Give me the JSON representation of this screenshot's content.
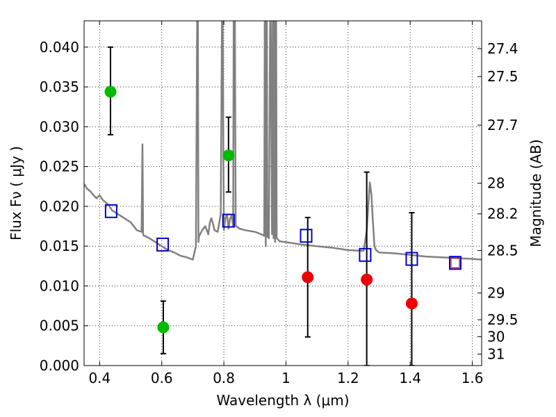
{
  "chart_data": {
    "type": "scatter",
    "title": "",
    "xlabel": "Wavelength  λ (μm)",
    "ylabel": "Flux  Fν  ( μJy )",
    "y2label": "Magnitude (AB)",
    "xlim": [
      0.35,
      1.63
    ],
    "ylim": [
      0.0,
      0.0433
    ],
    "grid": true,
    "x_ticks": [
      {
        "value": 0.4,
        "label": "0.4"
      },
      {
        "value": 0.6,
        "label": "0.6"
      },
      {
        "value": 0.8,
        "label": "0.8"
      },
      {
        "value": 1.0,
        "label": "1"
      },
      {
        "value": 1.2,
        "label": "1.2"
      },
      {
        "value": 1.4,
        "label": "1.4"
      },
      {
        "value": 1.6,
        "label": "1.6"
      }
    ],
    "y_ticks": [
      {
        "value": 0.0,
        "label": "0.000"
      },
      {
        "value": 0.005,
        "label": "0.005"
      },
      {
        "value": 0.01,
        "label": "0.010"
      },
      {
        "value": 0.015,
        "label": "0.015"
      },
      {
        "value": 0.02,
        "label": "0.020"
      },
      {
        "value": 0.025,
        "label": "0.025"
      },
      {
        "value": 0.03,
        "label": "0.030"
      },
      {
        "value": 0.035,
        "label": "0.035"
      },
      {
        "value": 0.04,
        "label": "0.040"
      }
    ],
    "y2_ticks": [
      {
        "value": 27.4,
        "label": "27.4"
      },
      {
        "value": 27.5,
        "label": "27.5"
      },
      {
        "value": 27.7,
        "label": "27.7"
      },
      {
        "value": 28.0,
        "label": "28"
      },
      {
        "value": 28.2,
        "label": "28.2"
      },
      {
        "value": 28.5,
        "label": "28.5"
      },
      {
        "value": 29.0,
        "label": "29"
      },
      {
        "value": 29.5,
        "label": "29.5"
      },
      {
        "value": 30.0,
        "label": "30"
      },
      {
        "value": 31.0,
        "label": "31"
      }
    ],
    "colors": {
      "template": "#808080",
      "model_points": "#0000cc",
      "detections": "#00bb00",
      "upper_limits": "#ee0000",
      "last_model_point_edge": "#cc0000"
    },
    "template_spectrum": {
      "x": [
        0.35,
        0.36,
        0.37,
        0.38,
        0.39,
        0.4,
        0.41,
        0.42,
        0.43,
        0.44,
        0.46,
        0.48,
        0.5,
        0.52,
        0.535,
        0.538,
        0.54,
        0.542,
        0.545,
        0.55,
        0.56,
        0.58,
        0.6,
        0.62,
        0.64,
        0.66,
        0.68,
        0.7,
        0.71,
        0.715,
        0.716,
        0.718,
        0.72,
        0.73,
        0.74,
        0.75,
        0.755,
        0.76,
        0.765,
        0.77,
        0.78,
        0.79,
        0.795,
        0.8,
        0.805,
        0.81,
        0.815,
        0.82,
        0.825,
        0.83,
        0.832,
        0.835,
        0.838,
        0.84,
        0.85,
        0.87,
        0.9,
        0.92,
        0.93,
        0.932,
        0.935,
        0.938,
        0.94,
        0.945,
        0.95,
        0.955,
        0.958,
        0.96,
        0.962,
        0.965,
        0.968,
        0.97,
        0.975,
        0.98,
        1.0,
        1.05,
        1.1,
        1.15,
        1.2,
        1.25,
        1.26,
        1.27,
        1.275,
        1.28,
        1.285,
        1.29,
        1.3,
        1.35,
        1.4,
        1.45,
        1.5,
        1.55,
        1.6,
        1.63
      ],
      "y": [
        0.0228,
        0.0222,
        0.0219,
        0.0214,
        0.021,
        0.0214,
        0.0208,
        0.0205,
        0.0201,
        0.0195,
        0.019,
        0.0185,
        0.018,
        0.017,
        0.0168,
        0.0278,
        0.0165,
        0.0163,
        0.0163,
        0.0162,
        0.016,
        0.0155,
        0.015,
        0.0145,
        0.0142,
        0.0138,
        0.0136,
        0.0133,
        0.015,
        0.05,
        0.05,
        0.0155,
        0.0162,
        0.017,
        0.0175,
        0.0165,
        0.018,
        0.0185,
        0.0178,
        0.017,
        0.0168,
        0.019,
        0.05,
        0.017,
        0.0185,
        0.019,
        0.0172,
        0.0185,
        0.0188,
        0.0175,
        0.05,
        0.05,
        0.0175,
        0.0175,
        0.0172,
        0.017,
        0.0168,
        0.0165,
        0.0163,
        0.05,
        0.015,
        0.05,
        0.0162,
        0.016,
        0.05,
        0.0165,
        0.05,
        0.016,
        0.05,
        0.0155,
        0.05,
        0.016,
        0.0158,
        0.0156,
        0.0155,
        0.0152,
        0.015,
        0.0148,
        0.0145,
        0.0144,
        0.017,
        0.023,
        0.0215,
        0.018,
        0.015,
        0.0145,
        0.0142,
        0.0141,
        0.0139,
        0.0137,
        0.0136,
        0.0135,
        0.0134,
        0.0133
      ]
    },
    "series": [
      {
        "marker": "circle",
        "color": "#00bb00",
        "points": [
          {
            "x": 0.435,
            "y": 0.0344,
            "err_lo": 0.029,
            "err_hi": 0.04
          },
          {
            "x": 0.605,
            "y": 0.0048,
            "err_lo": 0.0015,
            "err_hi": 0.0081
          },
          {
            "x": 0.815,
            "y": 0.0264,
            "err_lo": 0.0218,
            "err_hi": 0.0312
          }
        ]
      },
      {
        "marker": "circle",
        "color": "#ee0000",
        "points": [
          {
            "x": 1.07,
            "y": 0.0111,
            "err_lo": 0.0036,
            "err_hi": 0.0186
          },
          {
            "x": 1.26,
            "y": 0.0108,
            "err_lo": 0.0,
            "err_hi": 0.0243
          },
          {
            "x": 1.405,
            "y": 0.0078,
            "err_lo": 0.0,
            "err_hi": 0.0192
          }
        ]
      },
      {
        "marker": "open-square",
        "color": "#0000cc",
        "points": [
          {
            "x": 0.437,
            "y": 0.0194
          },
          {
            "x": 0.603,
            "y": 0.0152
          },
          {
            "x": 0.815,
            "y": 0.0182
          },
          {
            "x": 1.065,
            "y": 0.0163
          },
          {
            "x": 1.255,
            "y": 0.0139
          },
          {
            "x": 1.405,
            "y": 0.0134
          },
          {
            "x": 1.545,
            "y": 0.0129,
            "edge": "#cc0000"
          }
        ]
      }
    ]
  }
}
